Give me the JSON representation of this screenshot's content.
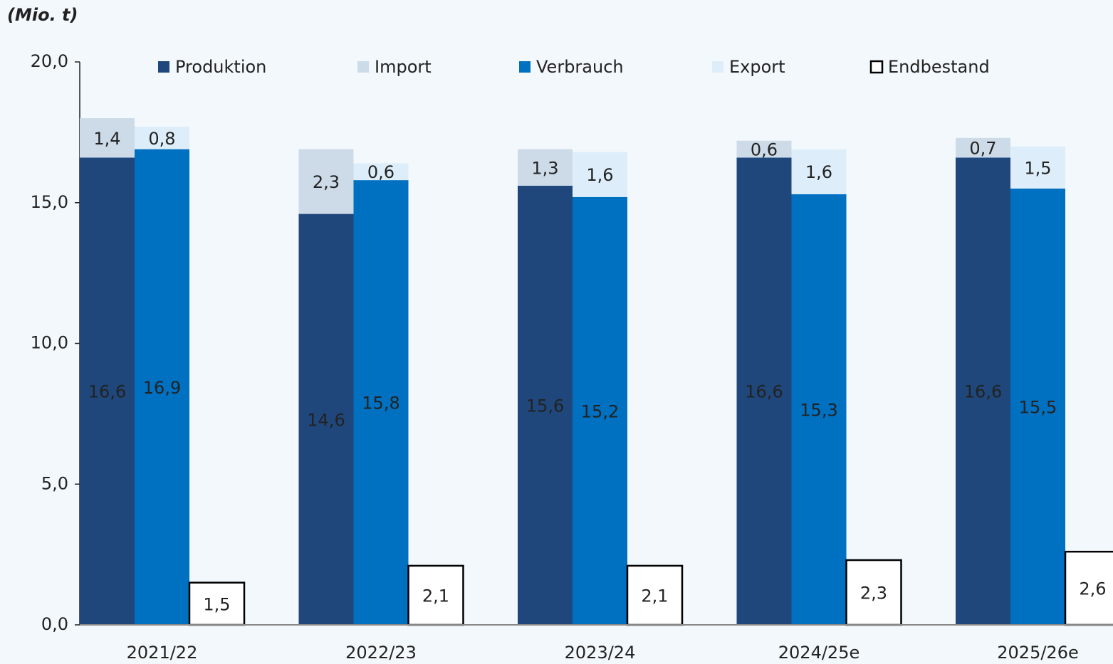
{
  "chart_data": {
    "type": "bar",
    "y_axis_label": "(Mio. t)",
    "categories": [
      "2021/22",
      "2022/23",
      "2023/24",
      "2024/25e",
      "2025/26e"
    ],
    "series": [
      {
        "name": "Produktion",
        "color": "#1f477b",
        "values": [
          16.6,
          14.6,
          15.6,
          16.6,
          16.6
        ],
        "value_labels": [
          "16,6",
          "14,6",
          "15,6",
          "16,6",
          "16,6"
        ]
      },
      {
        "name": "Import",
        "color": "#cddbe9",
        "values": [
          1.4,
          2.3,
          1.3,
          0.6,
          0.7
        ],
        "value_labels": [
          "1,4",
          "2,3",
          "1,3",
          "0,6",
          "0,7"
        ]
      },
      {
        "name": "Verbrauch",
        "color": "#0070c0",
        "values": [
          16.9,
          15.8,
          15.2,
          15.3,
          15.5
        ],
        "value_labels": [
          "16,9",
          "15,8",
          "15,2",
          "15,3",
          "15,5"
        ]
      },
      {
        "name": "Export",
        "color": "#ddeefa",
        "values": [
          0.8,
          0.6,
          1.6,
          1.6,
          1.5
        ],
        "value_labels": [
          "0,8",
          "0,6",
          "1,6",
          "1,6",
          "1,5"
        ]
      },
      {
        "name": "Endbestand",
        "color": "#ffffff",
        "values": [
          1.5,
          2.1,
          2.1,
          2.3,
          2.6
        ],
        "value_labels": [
          "1,5",
          "2,1",
          "2,1",
          "2,3",
          "2,6"
        ]
      }
    ],
    "ylim": [
      0,
      20
    ],
    "yticks": [
      {
        "value": 0,
        "label": "0,0"
      },
      {
        "value": 5,
        "label": "5,0"
      },
      {
        "value": 10,
        "label": "10,0"
      },
      {
        "value": 15,
        "label": "15,0"
      },
      {
        "value": 20,
        "label": "20,0"
      }
    ]
  }
}
